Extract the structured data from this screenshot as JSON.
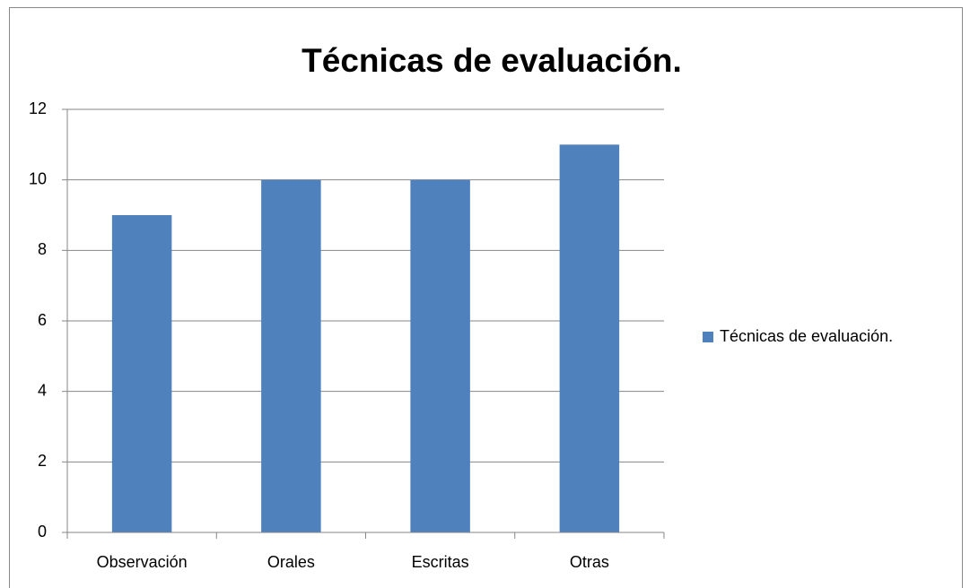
{
  "chart_data": {
    "type": "bar",
    "title": "Técnicas de evaluación.",
    "categories": [
      "Observación",
      "Orales",
      "Escritas",
      "Otras"
    ],
    "series": [
      {
        "name": "Técnicas de evaluación.",
        "color": "#4f81bd",
        "values": [
          9,
          10,
          10,
          11
        ]
      }
    ],
    "ylim": [
      0,
      12
    ],
    "yticks": [
      0,
      2,
      4,
      6,
      8,
      10,
      12
    ],
    "grid": true,
    "legend": "right"
  }
}
